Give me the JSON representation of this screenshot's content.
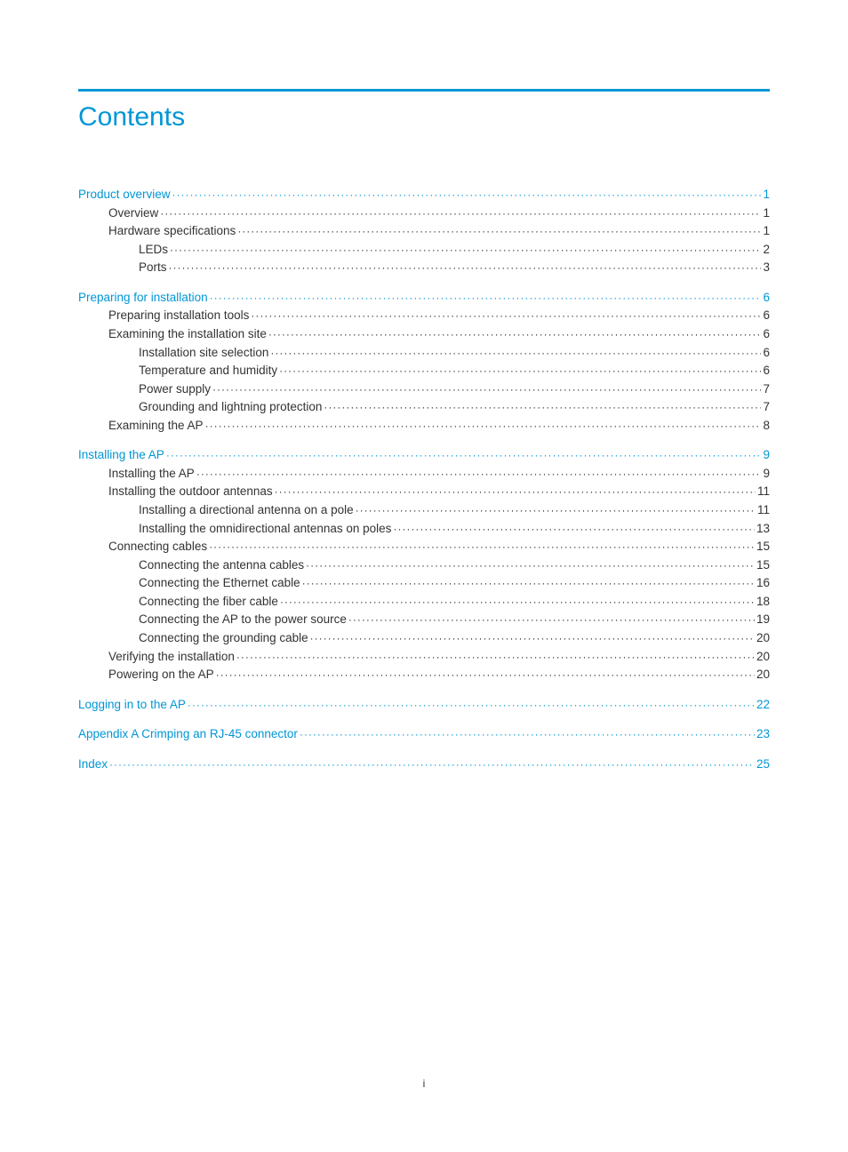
{
  "title": "Contents",
  "footer": "i",
  "colors": {
    "accent": "#0096d6",
    "text": "#333333",
    "background": "#ffffff"
  },
  "typography": {
    "title_fontsize_pt": 22,
    "body_fontsize_pt": 10,
    "font_family": "Arial"
  },
  "toc": [
    {
      "label": "Product overview",
      "page": "1",
      "level": 0,
      "gap": false
    },
    {
      "label": "Overview",
      "page": "1",
      "level": 1,
      "gap": false
    },
    {
      "label": "Hardware specifications",
      "page": "1",
      "level": 1,
      "gap": false
    },
    {
      "label": "LEDs",
      "page": "2",
      "level": 2,
      "gap": false
    },
    {
      "label": "Ports",
      "page": "3",
      "level": 2,
      "gap": false
    },
    {
      "label": "Preparing for installation",
      "page": "6",
      "level": 0,
      "gap": true
    },
    {
      "label": "Preparing installation tools",
      "page": "6",
      "level": 1,
      "gap": false
    },
    {
      "label": "Examining the installation site",
      "page": "6",
      "level": 1,
      "gap": false
    },
    {
      "label": "Installation site selection",
      "page": "6",
      "level": 2,
      "gap": false
    },
    {
      "label": "Temperature and humidity",
      "page": "6",
      "level": 2,
      "gap": false
    },
    {
      "label": "Power supply",
      "page": "7",
      "level": 2,
      "gap": false
    },
    {
      "label": "Grounding and lightning protection",
      "page": "7",
      "level": 2,
      "gap": false
    },
    {
      "label": "Examining the AP",
      "page": "8",
      "level": 1,
      "gap": false
    },
    {
      "label": "Installing the AP",
      "page": "9",
      "level": 0,
      "gap": true
    },
    {
      "label": "Installing the AP",
      "page": "9",
      "level": 1,
      "gap": false
    },
    {
      "label": "Installing the outdoor antennas",
      "page": "11",
      "level": 1,
      "gap": false
    },
    {
      "label": "Installing a directional antenna on a pole",
      "page": "11",
      "level": 2,
      "gap": false
    },
    {
      "label": "Installing the omnidirectional antennas on poles",
      "page": "13",
      "level": 2,
      "gap": false
    },
    {
      "label": "Connecting cables",
      "page": "15",
      "level": 1,
      "gap": false
    },
    {
      "label": "Connecting the antenna cables",
      "page": "15",
      "level": 2,
      "gap": false
    },
    {
      "label": "Connecting the Ethernet cable",
      "page": "16",
      "level": 2,
      "gap": false
    },
    {
      "label": "Connecting the fiber cable",
      "page": "18",
      "level": 2,
      "gap": false
    },
    {
      "label": "Connecting the AP to the power source",
      "page": "19",
      "level": 2,
      "gap": false
    },
    {
      "label": "Connecting the grounding cable",
      "page": "20",
      "level": 2,
      "gap": false
    },
    {
      "label": "Verifying the installation",
      "page": "20",
      "level": 1,
      "gap": false
    },
    {
      "label": "Powering on the AP",
      "page": "20",
      "level": 1,
      "gap": false
    },
    {
      "label": "Logging in to the AP",
      "page": "22",
      "level": 0,
      "gap": true
    },
    {
      "label": "Appendix A Crimping an RJ-45 connector",
      "page": "23",
      "level": 0,
      "gap": true
    },
    {
      "label": "Index",
      "page": "25",
      "level": 0,
      "gap": true
    }
  ]
}
